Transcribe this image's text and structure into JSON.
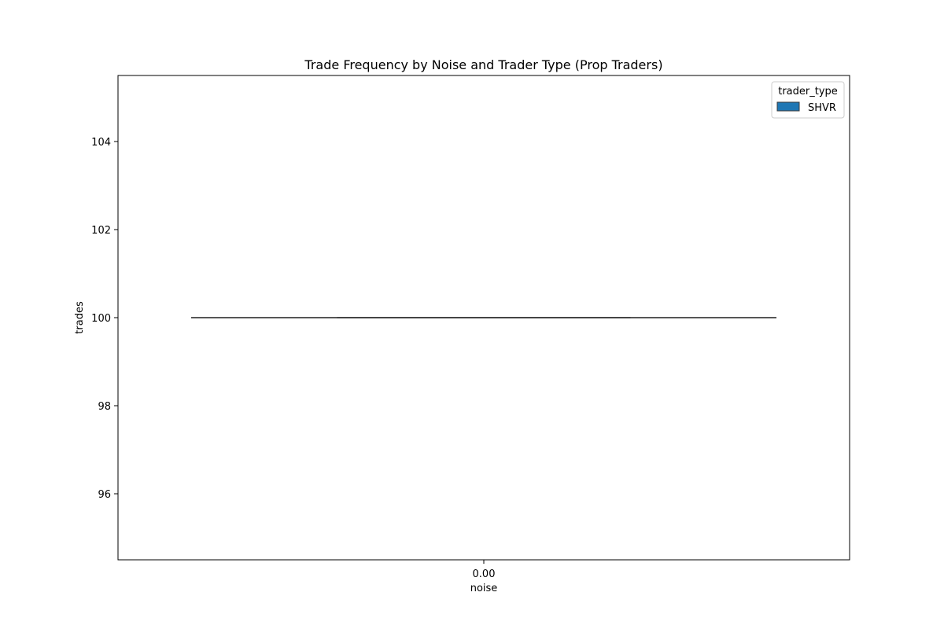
{
  "chart_data": {
    "type": "boxplot",
    "title": "Trade Frequency by Noise and Trader Type (Prop Traders)",
    "xlabel": "noise",
    "ylabel": "trades",
    "categories": [
      "0.00"
    ],
    "ylim": [
      94.5,
      105.5
    ],
    "yticks": [
      96,
      98,
      100,
      102,
      104
    ],
    "grid": false,
    "legend": {
      "title": "trader_type",
      "placement": "top-right",
      "entries": [
        "SHVR"
      ]
    },
    "series": [
      {
        "name": "SHVR",
        "color": "#1f77b4",
        "boxes": [
          {
            "category": "0.00",
            "min": 100,
            "q1": 100,
            "median": 100,
            "q3": 100,
            "max": 100
          }
        ]
      }
    ]
  }
}
